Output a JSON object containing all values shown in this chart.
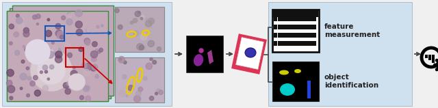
{
  "bg_color": "#f0f0f0",
  "panel1_bg": "#cfe0ee",
  "panel2_bg": "#cfe0ee",
  "text_object_id": "object\nidentification",
  "text_feature": "feature\nmeasurement",
  "arrow_color": "#555555",
  "green_border": "#3a8a3a",
  "red_box": "#cc0000",
  "blue_box": "#1155bb",
  "yellow_outline": "#eecc00",
  "pink_bg": "#dd3355",
  "cyan_color": "#00cccc",
  "yellow_small": "#cccc00",
  "blue_cell": "#3333aa",
  "magenta1": "#aa00bb",
  "magenta2": "#cc55aa"
}
